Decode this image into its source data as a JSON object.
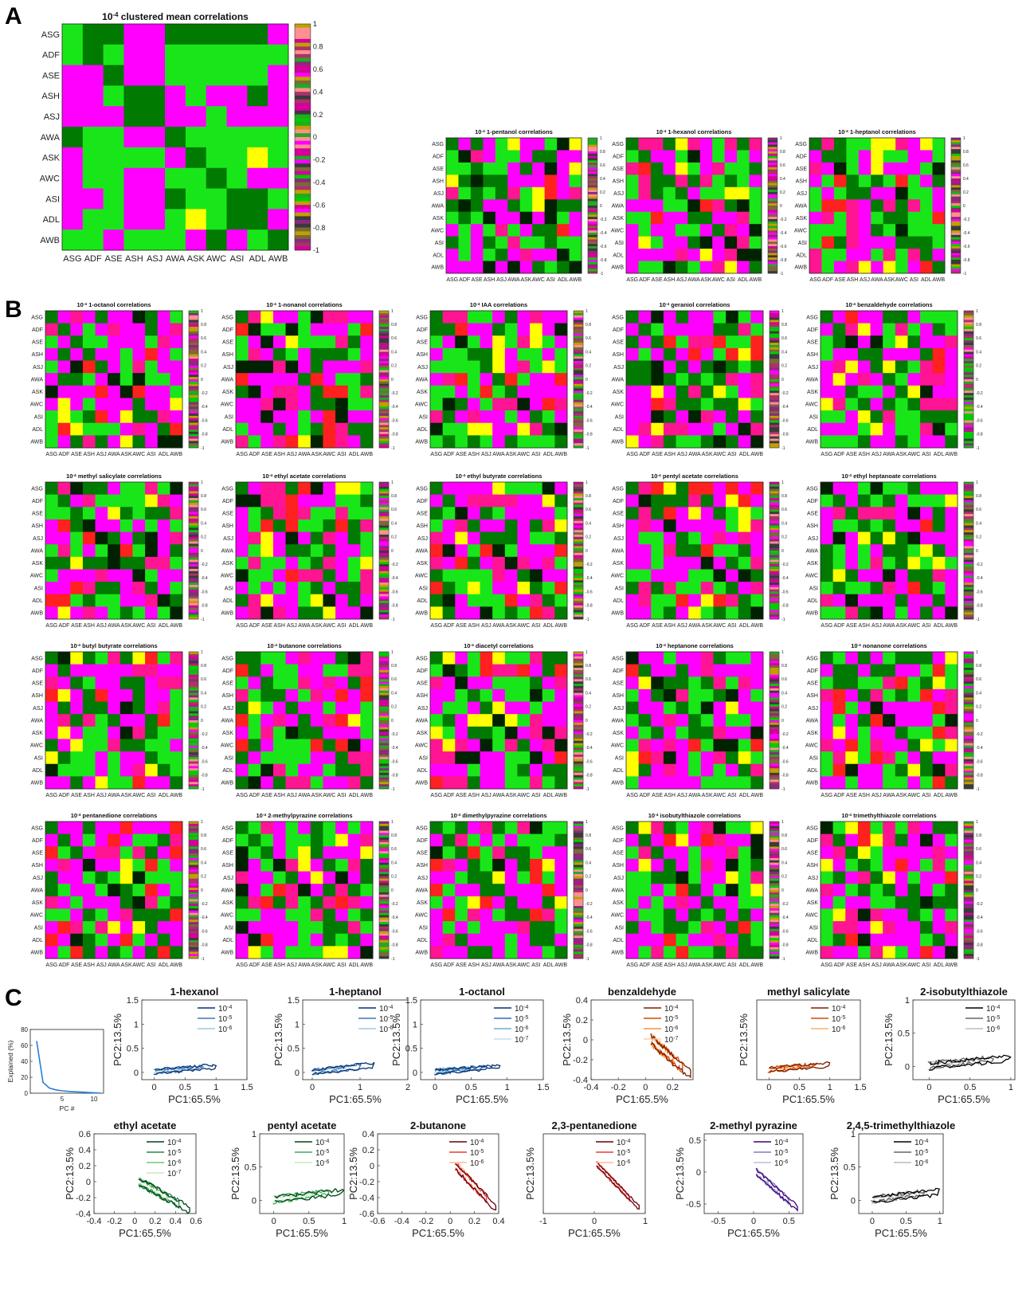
{
  "neurons": [
    "ASG",
    "ADF",
    "ASE",
    "ASH",
    "ASJ",
    "AWA",
    "ASK",
    "AWC",
    "ASI",
    "ADL",
    "AWB"
  ],
  "colorbar_ticks": [
    "1",
    "0.8",
    "0.6",
    "0.4",
    "0.2",
    "0",
    "-0.2",
    "-0.4",
    "-0.6",
    "-0.8",
    "-1"
  ],
  "colors": {
    "magenta": "#ff00ff",
    "hotpink": "#ff1493",
    "red": "#ff2020",
    "green": "#19e619",
    "darkgreen": "#007a00",
    "black": "#002200",
    "yellow": "#ffff00"
  },
  "panel_letters": [
    "A",
    "B",
    "C"
  ],
  "panel_a": {
    "title_sup": "-4",
    "title": "clustered mean correlations",
    "matrix": [
      [
        "G",
        "D",
        "D",
        "M",
        "M",
        "D",
        "D",
        "D",
        "D",
        "D",
        "M"
      ],
      [
        "G",
        "D",
        "G",
        "M",
        "M",
        "G",
        "G",
        "G",
        "G",
        "G",
        "G"
      ],
      [
        "M",
        "M",
        "D",
        "M",
        "M",
        "G",
        "G",
        "G",
        "G",
        "G",
        "M"
      ],
      [
        "M",
        "M",
        "G",
        "D",
        "D",
        "M",
        "G",
        "M",
        "M",
        "D",
        "M"
      ],
      [
        "M",
        "M",
        "M",
        "D",
        "D",
        "M",
        "M",
        "G",
        "M",
        "M",
        "M"
      ],
      [
        "D",
        "G",
        "G",
        "M",
        "M",
        "D",
        "G",
        "G",
        "G",
        "G",
        "G"
      ],
      [
        "M",
        "G",
        "G",
        "G",
        "G",
        "M",
        "D",
        "G",
        "G",
        "Y",
        "G"
      ],
      [
        "M",
        "G",
        "G",
        "M",
        "M",
        "G",
        "G",
        "D",
        "G",
        "M",
        "M"
      ],
      [
        "M",
        "M",
        "G",
        "M",
        "M",
        "D",
        "G",
        "G",
        "D",
        "D",
        "G"
      ],
      [
        "M",
        "G",
        "G",
        "M",
        "M",
        "G",
        "Y",
        "G",
        "D",
        "D",
        "M"
      ],
      [
        "G",
        "G",
        "M",
        "G",
        "G",
        "G",
        "M",
        "D",
        "M",
        "G",
        "D"
      ]
    ]
  },
  "panel_a_small": [
    {
      "title_sup": "-4",
      "title": "1-pentanol correlations",
      "seed": 11
    },
    {
      "title_sup": "-4",
      "title": "1-hexanol correlations",
      "seed": 23
    },
    {
      "title_sup": "-4",
      "title": "1-heptanol correlations",
      "seed": 37
    }
  ],
  "panel_b": [
    {
      "title_sup": "-4",
      "title": "1-octanol correlations",
      "seed": 41
    },
    {
      "title_sup": "-4",
      "title": "1-nonanol correlations",
      "seed": 53
    },
    {
      "title_sup": "-4",
      "title": "IAA correlations",
      "seed": 67
    },
    {
      "title_sup": "-4",
      "title": "geraniol correlations",
      "seed": 71
    },
    {
      "title_sup": "-4",
      "title": "benzaldehyde correlations",
      "seed": 83
    },
    {
      "title_sup": "-4",
      "title": "methyl salicylate correlations",
      "seed": 97
    },
    {
      "title_sup": "-4",
      "title": "ethyl acetate correlations",
      "seed": 101
    },
    {
      "title_sup": "-4",
      "title": "ethyl butyrate correlations",
      "seed": 113
    },
    {
      "title_sup": "-4",
      "title": "pentyl acetate correlations",
      "seed": 127
    },
    {
      "title_sup": "-4",
      "title": "ethyl heptanoate correlations",
      "seed": 131
    },
    {
      "title_sup": "-4",
      "title": "butyl butyrate correlations",
      "seed": 149
    },
    {
      "title_sup": "-4",
      "title": "butanone correlations",
      "seed": 151
    },
    {
      "title_sup": "-4",
      "title": "diacetyl correlations",
      "seed": 163
    },
    {
      "title_sup": "-4",
      "title": "heptanone correlations",
      "seed": 173
    },
    {
      "title_sup": "-4",
      "title": "nonanone correlations",
      "seed": 181
    },
    {
      "title_sup": "-4",
      "title": "pentanedione correlations",
      "seed": 191
    },
    {
      "title_sup": "-4",
      "title": "2-methylpyrazine correlations",
      "seed": 197
    },
    {
      "title_sup": "-4",
      "title": "dimethylpyrazine correlations",
      "seed": 211
    },
    {
      "title_sup": "-4",
      "title": "isobutylthiazole correlations",
      "seed": 223
    },
    {
      "title_sup": "-4",
      "title": "trimethylthiazole correlations",
      "seed": 227
    }
  ],
  "scree": {
    "ylabel": "Explained (%)",
    "xlabel": "PC #",
    "yticks": [
      "0",
      "20",
      "40",
      "60",
      "80"
    ],
    "xticks": [
      "5",
      "10"
    ],
    "values": [
      65.5,
      13.5,
      6.5,
      4.2,
      3.0,
      2.3,
      1.8,
      1.4,
      1.0,
      0.6,
      0.2
    ]
  },
  "chart_data": [
    {
      "type": "line",
      "title": "1-hexanol",
      "xlabel": "PC1:65.5%",
      "ylabel": "PC2:13.5%",
      "xlim": [
        -0.2,
        1.5
      ],
      "ylim": [
        -0.15,
        1.5
      ],
      "xticks": [
        "0",
        "0.5",
        "1",
        "1.5"
      ],
      "yticks": [
        "0",
        "0.5",
        "1",
        "1.5"
      ],
      "legend": [
        "10^-4",
        "10^-5",
        "10^-6"
      ],
      "colors": [
        "#08306b",
        "#3a78c2",
        "#9ecae1"
      ],
      "shape": "wedge",
      "size": 1
    },
    {
      "type": "line",
      "title": "1-heptanol",
      "xlabel": "PC1:65.5%",
      "ylabel": "PC2:13.5%",
      "xlim": [
        -0.2,
        2
      ],
      "ylim": [
        -0.15,
        1.5
      ],
      "xticks": [
        "0",
        "1",
        "2"
      ],
      "yticks": [
        "0",
        "0.5",
        "1",
        "1.5"
      ],
      "legend": [
        "10^-4",
        "10^-5",
        "10^-6"
      ],
      "colors": [
        "#08306b",
        "#3a78c2",
        "#9ecae1"
      ],
      "shape": "wedge",
      "size": 1.3
    },
    {
      "type": "line",
      "title": "1-octanol",
      "xlabel": "PC1:65.5%",
      "ylabel": "PC2:13.5%",
      "xlim": [
        -0.2,
        1.5
      ],
      "ylim": [
        -0.15,
        1.5
      ],
      "xticks": [
        "0",
        "0.5",
        "1",
        "1.5"
      ],
      "yticks": [
        "0",
        "0.5",
        "1",
        "1.5"
      ],
      "legend": [
        "10^-4",
        "10^-5",
        "10^-6",
        "10^-7"
      ],
      "colors": [
        "#08306b",
        "#2f6db5",
        "#6baed6",
        "#c6dbef"
      ],
      "shape": "wedge",
      "size": 0.9
    },
    {
      "type": "line",
      "title": "benzaldehyde",
      "xlabel": "PC1:65.5%",
      "ylabel": "PC2:13.5%",
      "xlim": [
        -0.4,
        0.35
      ],
      "ylim": [
        -0.4,
        0.4
      ],
      "xticks": [
        "-0.4",
        "-0.2",
        "0",
        "0.2"
      ],
      "yticks": [
        "-0.4",
        "-0.2",
        "0",
        "0.2",
        "0.4"
      ],
      "legend": [
        "10^-4",
        "10^-5",
        "10^-6",
        "10^-7"
      ],
      "colors": [
        "#7a2000",
        "#d94801",
        "#fd8d3c",
        "#fdd0a2"
      ],
      "shape": "down",
      "size": 1
    },
    {
      "type": "line",
      "title": "methyl salicylate",
      "xlabel": "PC1:65.5%",
      "ylabel": "PC2:13.5%",
      "xlim": [
        -0.2,
        1.5
      ],
      "ylim": [
        -0.2,
        1.5
      ],
      "xticks": [
        "0",
        "0.5",
        "1",
        "1.5"
      ],
      "yticks": [],
      "legend": [
        "10^-4",
        "10^-5",
        "10^-6"
      ],
      "colors": [
        "#7a2000",
        "#d94801",
        "#fdae6b"
      ],
      "shape": "wedge",
      "size": 1
    },
    {
      "type": "line",
      "title": "2-isobutylthiazole",
      "xlabel": "PC1:65.5%",
      "ylabel": "PC2:13.5%",
      "xlim": [
        -0.2,
        1.05
      ],
      "ylim": [
        -0.2,
        1
      ],
      "xticks": [
        "0",
        "0.5",
        "1"
      ],
      "yticks": [
        "0",
        "0.5",
        "1"
      ],
      "legend": [
        "10^-4",
        "10^-5",
        "10^-6"
      ],
      "colors": [
        "#000000",
        "#666666",
        "#bbbbbb"
      ],
      "shape": "wedge",
      "size": 1
    },
    {
      "type": "line",
      "title": "ethyl acetate",
      "xlabel": "PC1:65.5%",
      "ylabel": "PC2:13.5%",
      "xlim": [
        -0.4,
        0.6
      ],
      "ylim": [
        -0.4,
        0.6
      ],
      "xticks": [
        "-0.4",
        "-0.2",
        "0",
        "0.2",
        "0.4",
        "0.6"
      ],
      "yticks": [
        "-0.4",
        "-0.2",
        "0",
        "0.2",
        "0.4",
        "0.6"
      ],
      "legend": [
        "10^-4",
        "10^-5",
        "10^-6",
        "10^-7"
      ],
      "colors": [
        "#00441b",
        "#238b45",
        "#74c476",
        "#c7e9c0"
      ],
      "shape": "down",
      "size": 1
    },
    {
      "type": "line",
      "title": "pentyl acetate",
      "xlabel": "PC1:65.5%",
      "ylabel": "PC2:13.5%",
      "xlim": [
        -0.2,
        1
      ],
      "ylim": [
        -0.2,
        1
      ],
      "xticks": [
        "0",
        "0.5",
        "1"
      ],
      "yticks": [
        "0",
        "0.5",
        "1"
      ],
      "legend": [
        "10^-4",
        "10^-5",
        "10^-6"
      ],
      "colors": [
        "#00441b",
        "#41ab5d",
        "#c7e9c0"
      ],
      "shape": "wedge",
      "size": 1
    },
    {
      "type": "line",
      "title": "2-butanone",
      "xlabel": "PC1:65.5%",
      "ylabel": "PC2:13.5%",
      "xlim": [
        -0.6,
        0.4
      ],
      "ylim": [
        -0.6,
        0.4
      ],
      "xticks": [
        "-0.6",
        "-0.4",
        "-0.2",
        "0",
        "0.2",
        "0.4"
      ],
      "yticks": [
        "-0.6",
        "-0.4",
        "-0.2",
        "0",
        "0.2",
        "0.4"
      ],
      "legend": [
        "10^-4",
        "10^-5",
        "10^-6"
      ],
      "colors": [
        "#67000d",
        "#ef3b2c",
        "#fcbba1"
      ],
      "shape": "down",
      "size": 1
    },
    {
      "type": "line",
      "title": "2,3-pentanedione",
      "xlabel": "PC1:65.5%",
      "ylabel": "PC2:13.5%",
      "xlim": [
        -1,
        1
      ],
      "ylim": [
        -1,
        0.6
      ],
      "xticks": [
        "-1",
        "0",
        "1"
      ],
      "yticks": [],
      "legend": [
        "10^-4",
        "10^-5",
        "10^-6"
      ],
      "colors": [
        "#67000d",
        "#ef3b2c",
        "#fcbba1"
      ],
      "shape": "down",
      "size": 1
    },
    {
      "type": "line",
      "title": "2-methyl pyrazine",
      "xlabel": "PC1:65.5%",
      "ylabel": "PC2:13.5%",
      "xlim": [
        -0.7,
        0.7
      ],
      "ylim": [
        -0.65,
        0.6
      ],
      "xticks": [
        "-0.5",
        "0",
        "0.5"
      ],
      "yticks": [
        "-0.5",
        "0",
        "0.5"
      ],
      "legend": [
        "10^-4",
        "10^-5",
        "10^-6"
      ],
      "colors": [
        "#3f007d",
        "#807dba",
        "#bcbddc"
      ],
      "shape": "down",
      "size": 1
    },
    {
      "type": "line",
      "title": "2,4,5-trimethylthiazole",
      "xlabel": "PC1:65.5%",
      "ylabel": "PC2:13.5%",
      "xlim": [
        -0.2,
        1.05
      ],
      "ylim": [
        -0.2,
        1
      ],
      "xticks": [
        "0",
        "0.5",
        "1"
      ],
      "yticks": [
        "0",
        "0.5",
        "1"
      ],
      "legend": [
        "10^-4",
        "10^-5",
        "10^-6"
      ],
      "colors": [
        "#000000",
        "#666666",
        "#bbbbbb"
      ],
      "shape": "wedge",
      "size": 1
    }
  ]
}
